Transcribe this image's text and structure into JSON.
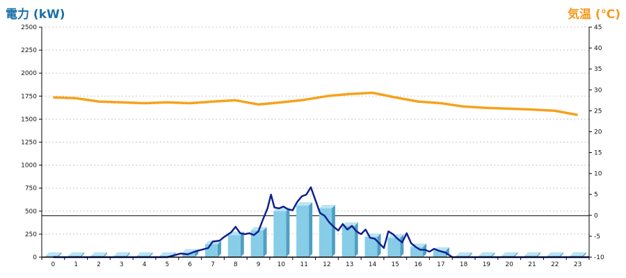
{
  "chart_data": {
    "type": "bar+line",
    "left_axis": {
      "title": "電力 (kW)",
      "min": 0,
      "max": 2500,
      "ticks": [
        0,
        250,
        500,
        750,
        1000,
        1250,
        1500,
        1750,
        2000,
        2250,
        2500
      ]
    },
    "right_axis": {
      "title": "気温 (℃)",
      "min": -10,
      "max": 45,
      "ticks": [
        -10,
        -5,
        0,
        5,
        10,
        15,
        20,
        25,
        30,
        35,
        40,
        45
      ]
    },
    "categories": [
      "0",
      "1",
      "2",
      "3",
      "4",
      "5",
      "6",
      "7",
      "8",
      "9",
      "10",
      "11",
      "12",
      "13",
      "14",
      "15",
      "16",
      "17",
      "18",
      "19",
      "20",
      "21",
      "22",
      "23"
    ],
    "reference_line_y": 450,
    "grid": "dashed-horizontal",
    "colors": {
      "bar": "#87cde8",
      "bar_side": "#4f9fc4",
      "bar_top": "#b9e4f4",
      "power_line": "#0f1f8f",
      "temp_line": "#f5a21b"
    },
    "bars": [
      15,
      15,
      15,
      15,
      15,
      15,
      50,
      140,
      240,
      290,
      500,
      560,
      530,
      340,
      220,
      210,
      110,
      70,
      15,
      15,
      15,
      15,
      15,
      15
    ],
    "power_series": [
      [
        0,
        0
      ],
      [
        1,
        0
      ],
      [
        2,
        0
      ],
      [
        3,
        0
      ],
      [
        4,
        0
      ],
      [
        5,
        0
      ],
      [
        5.3,
        20
      ],
      [
        5.6,
        40
      ],
      [
        5.9,
        30
      ],
      [
        6.2,
        60
      ],
      [
        6.5,
        80
      ],
      [
        6.8,
        100
      ],
      [
        7.0,
        170
      ],
      [
        7.3,
        180
      ],
      [
        7.5,
        220
      ],
      [
        7.8,
        270
      ],
      [
        8.0,
        330
      ],
      [
        8.2,
        260
      ],
      [
        8.4,
        250
      ],
      [
        8.6,
        260
      ],
      [
        8.8,
        240
      ],
      [
        9.0,
        280
      ],
      [
        9.2,
        410
      ],
      [
        9.4,
        530
      ],
      [
        9.55,
        680
      ],
      [
        9.7,
        540
      ],
      [
        9.9,
        530
      ],
      [
        10.1,
        550
      ],
      [
        10.3,
        520
      ],
      [
        10.5,
        510
      ],
      [
        10.7,
        600
      ],
      [
        10.9,
        660
      ],
      [
        11.1,
        680
      ],
      [
        11.3,
        760
      ],
      [
        11.5,
        620
      ],
      [
        11.7,
        480
      ],
      [
        11.9,
        450
      ],
      [
        12.1,
        380
      ],
      [
        12.3,
        330
      ],
      [
        12.5,
        290
      ],
      [
        12.7,
        360
      ],
      [
        12.9,
        300
      ],
      [
        13.1,
        340
      ],
      [
        13.3,
        280
      ],
      [
        13.5,
        250
      ],
      [
        13.7,
        300
      ],
      [
        13.9,
        210
      ],
      [
        14.1,
        200
      ],
      [
        14.3,
        150
      ],
      [
        14.5,
        100
      ],
      [
        14.7,
        280
      ],
      [
        14.9,
        250
      ],
      [
        15.1,
        200
      ],
      [
        15.3,
        160
      ],
      [
        15.5,
        260
      ],
      [
        15.7,
        150
      ],
      [
        15.9,
        110
      ],
      [
        16.1,
        80
      ],
      [
        16.3,
        80
      ],
      [
        16.5,
        60
      ],
      [
        16.7,
        90
      ],
      [
        16.9,
        70
      ],
      [
        17.2,
        50
      ],
      [
        17.5,
        0
      ],
      [
        18,
        0
      ],
      [
        19,
        0
      ],
      [
        20,
        0
      ],
      [
        21,
        0
      ],
      [
        22,
        0
      ],
      [
        23,
        0
      ],
      [
        23.5,
        0
      ]
    ],
    "temp_series": [
      [
        0,
        28.2
      ],
      [
        1,
        28.0
      ],
      [
        2,
        27.2
      ],
      [
        3,
        27.0
      ],
      [
        4,
        26.8
      ],
      [
        5,
        27.0
      ],
      [
        6,
        26.8
      ],
      [
        7,
        27.2
      ],
      [
        8,
        27.5
      ],
      [
        9,
        26.5
      ],
      [
        10,
        27.0
      ],
      [
        11,
        27.6
      ],
      [
        12,
        28.5
      ],
      [
        13,
        29.0
      ],
      [
        14,
        29.3
      ],
      [
        15,
        28.2
      ],
      [
        16,
        27.2
      ],
      [
        17,
        26.8
      ],
      [
        18,
        26.0
      ],
      [
        19,
        25.7
      ],
      [
        20,
        25.5
      ],
      [
        21,
        25.3
      ],
      [
        22,
        25.0
      ],
      [
        23,
        24.0
      ]
    ]
  }
}
